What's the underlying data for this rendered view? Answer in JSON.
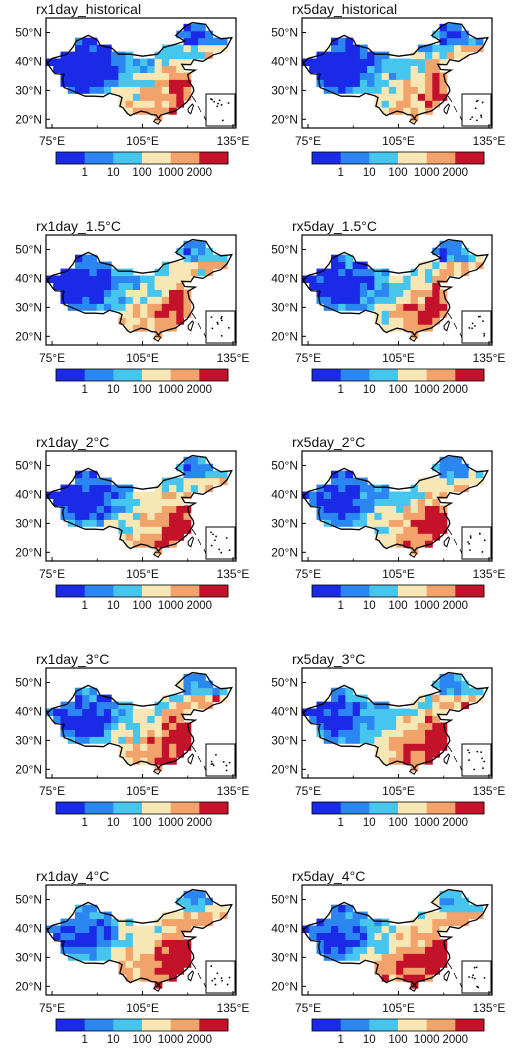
{
  "palette": [
    "#1a2ae6",
    "#2c86f2",
    "#46c6ef",
    "#f7e7b5",
    "#f2a36b",
    "#c4122a"
  ],
  "colorbar_labels": [
    "1",
    "10",
    "100",
    "1000",
    "2000"
  ],
  "lat_labels": [
    "50°N",
    "40°N",
    "30°N",
    "20°N"
  ],
  "lon_labels": [
    "75°E",
    "105°E",
    "135°E"
  ],
  "panels": [
    {
      "title": "rx1day_historical",
      "intensity": 0.0
    },
    {
      "title": "rx5day_historical",
      "intensity": 0.05
    },
    {
      "title": "rx1day_1.5°C",
      "intensity": 0.12
    },
    {
      "title": "rx5day_1.5°C",
      "intensity": 0.15
    },
    {
      "title": "rx1day_2°C",
      "intensity": 0.2
    },
    {
      "title": "rx5day_2°C",
      "intensity": 0.22
    },
    {
      "title": "rx1day_3°C",
      "intensity": 0.3
    },
    {
      "title": "rx5day_3°C",
      "intensity": 0.32
    },
    {
      "title": "rx1day_4°C",
      "intensity": 0.4
    },
    {
      "title": "rx5day_4°C",
      "intensity": 0.42
    }
  ]
}
